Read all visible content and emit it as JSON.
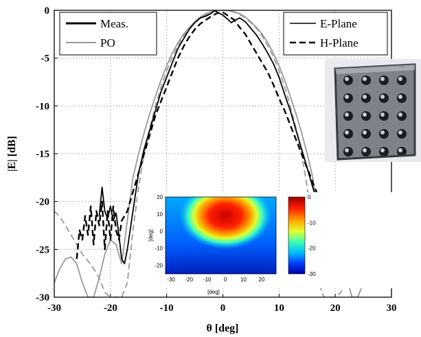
{
  "chart_data": {
    "type": "line",
    "xlabel": "θ [deg]",
    "ylabel": "|E| [dB]",
    "xlim": [
      -30,
      30
    ],
    "ylim": [
      -30,
      0
    ],
    "xticks": [
      "-30",
      "-20",
      "-10",
      "0",
      "10",
      "20",
      "30"
    ],
    "yticks": [
      "0",
      "-5",
      "-10",
      "-15",
      "-20",
      "-25",
      "-30"
    ],
    "grid": true,
    "legend_color": {
      "placement": "top-left",
      "entries": [
        {
          "label": "Meas.",
          "color": "#000000"
        },
        {
          "label": "PO",
          "color": "#999999"
        }
      ]
    },
    "legend_style": {
      "placement": "top-right",
      "entries": [
        {
          "label": "E-Plane",
          "dash": "solid"
        },
        {
          "label": "H-Plane",
          "dash": "dashed"
        }
      ]
    },
    "series": [
      {
        "source": "Meas.",
        "plane": "E-Plane",
        "color": "#000000",
        "dash": "solid",
        "x": [
          -18,
          -17.5,
          -17,
          -16,
          -15,
          -14,
          -13,
          -12,
          -11,
          -10,
          -9,
          -8,
          -7,
          -6,
          -5,
          -4,
          -3,
          -2,
          -1.5,
          -1,
          0,
          1,
          1.5,
          2,
          3,
          4,
          5,
          6,
          7,
          8,
          9,
          10,
          11,
          12,
          13,
          14,
          15,
          16,
          17,
          18
        ],
        "y": [
          -26,
          -26.5,
          -25,
          -21,
          -17,
          -14.5,
          -12.5,
          -10.5,
          -8.5,
          -7,
          -5.5,
          -4,
          -3,
          -2,
          -1.3,
          -0.8,
          -0.6,
          -0.3,
          0,
          -0.2,
          -0.5,
          -1,
          -1.3,
          -1.1,
          -0.8,
          -1.2,
          -1.9,
          -2.6,
          -3.5,
          -4.5,
          -5.6,
          -7,
          -8.8,
          -10.5,
          -12.5,
          -14.5,
          -16.5,
          -18.5,
          -20.5,
          -22
        ]
      },
      {
        "source": "Meas.",
        "plane": "H-Plane",
        "color": "#000000",
        "dash": "dashed",
        "x": [
          -26,
          -25.5,
          -25,
          -24.5,
          -24,
          -23.5,
          -23,
          -22.5,
          -22,
          -21.5,
          -21,
          -20.5,
          -20,
          -19.5,
          -19,
          -18.5,
          -18,
          -17,
          -16,
          -15,
          -14,
          -13,
          -12,
          -11,
          -10,
          -9,
          -8,
          -7,
          -6,
          -5,
          -4,
          -3,
          -2,
          -1,
          0,
          1,
          2,
          3,
          4,
          5,
          6,
          7,
          8,
          9,
          10,
          11,
          12,
          13,
          14,
          15,
          16,
          17,
          18,
          18.5
        ],
        "y": [
          -26,
          -23,
          -24,
          -21.5,
          -23.5,
          -20.5,
          -24.5,
          -21,
          -22.5,
          -20,
          -25,
          -21,
          -24,
          -20.5,
          -23,
          -24,
          -22,
          -21,
          -19,
          -17,
          -15,
          -13,
          -11,
          -9.5,
          -8,
          -6.5,
          -5,
          -3.8,
          -2.8,
          -2,
          -1.4,
          -1,
          -0.6,
          -0.3,
          -0.2,
          -0.6,
          -1,
          -1.8,
          -2.5,
          -3.5,
          -4.5,
          -5.5,
          -6.5,
          -7.8,
          -9.2,
          -10.5,
          -12,
          -13.5,
          -15,
          -16.5,
          -18,
          -19.5,
          -21,
          -22
        ]
      },
      {
        "source": "Meas.",
        "plane": "E-Plane",
        "color": "#000000",
        "dash": "solid",
        "x": [
          18,
          18.5,
          19,
          19.5,
          20,
          20.5,
          21,
          21.5,
          22,
          22.5,
          23,
          23.5,
          24,
          24.5,
          25,
          25.5,
          26,
          26.5,
          27,
          27.5,
          28,
          28.5,
          29,
          29.5,
          30
        ],
        "y": [
          -22,
          -23,
          -22.5,
          -23.5,
          -23,
          -24,
          -24.2,
          -23.6,
          -24.4,
          -23.8,
          -23,
          -24.5,
          -23.5,
          -22.6,
          -24.6,
          -23.4,
          -22.5,
          -23.5,
          -23,
          -24.2,
          -23,
          -22.2,
          -24,
          -23.6,
          -24.2
        ]
      },
      {
        "source": "Meas.",
        "plane": "E-Plane",
        "color": "#000000",
        "dash": "solid",
        "x": [
          -22,
          -21.5,
          -21,
          -20.5,
          -20,
          -19.5,
          -19,
          -18.5,
          -18
        ],
        "y": [
          -21.5,
          -18.5,
          -21,
          -21.8,
          -20.5,
          -22,
          -21.2,
          -23.5,
          -26
        ]
      },
      {
        "source": "PO",
        "plane": "E-Plane",
        "color": "#999999",
        "dash": "solid",
        "x": [
          -30,
          -29,
          -28,
          -27,
          -26,
          -25,
          -24,
          -23,
          -22,
          -21,
          -20,
          -19,
          -18,
          -17,
          -16,
          -15,
          -14,
          -13,
          -12,
          -11,
          -10,
          -9,
          -8,
          -7,
          -6,
          -5,
          -4,
          -3,
          -2,
          -1,
          0,
          1,
          2,
          3,
          4,
          5,
          6,
          7,
          8,
          9,
          10,
          11,
          12,
          13,
          14,
          15,
          16,
          17,
          18,
          19,
          20,
          21,
          22,
          23,
          24,
          25,
          26,
          27,
          28,
          29,
          30
        ],
        "y": [
          -28.5,
          -27,
          -26,
          -25.8,
          -26.5,
          -28.5,
          -30,
          -30,
          -28,
          -25.5,
          -24,
          -24.5,
          -26.5,
          -22,
          -17.5,
          -15,
          -12.8,
          -10.8,
          -9,
          -7.3,
          -5.8,
          -4.5,
          -3.4,
          -2.5,
          -1.8,
          -1.2,
          -0.7,
          -0.35,
          -0.15,
          -0.03,
          0,
          -0.03,
          -0.15,
          -0.35,
          -0.7,
          -1.2,
          -1.8,
          -2.5,
          -3.4,
          -4.5,
          -5.8,
          -7.3,
          -9,
          -10.8,
          -12.8,
          -15,
          -17.5,
          -22,
          -26.5,
          -24.5,
          -24,
          -25.5,
          -28,
          -30,
          -30,
          -28.5,
          -26.5,
          -25.8,
          -26,
          -27,
          -28.5
        ]
      },
      {
        "source": "PO",
        "plane": "H-Plane",
        "color": "#999999",
        "dash": "dashed",
        "x": [
          -30,
          -29,
          -28,
          -27,
          -26,
          -25,
          -24,
          -23,
          -22,
          -21,
          -20,
          -19,
          -18,
          -17,
          -16,
          -15,
          -14,
          -13,
          -12,
          -11,
          -10,
          -9,
          -8,
          -7,
          -6,
          -5,
          -4,
          -3,
          -2,
          -1,
          0,
          1,
          2,
          3,
          4,
          5,
          6,
          7,
          8,
          9,
          10,
          11,
          12,
          13,
          14,
          15,
          16,
          17,
          18,
          19,
          20,
          21,
          22,
          23,
          24,
          25,
          26,
          27,
          28,
          29,
          30
        ],
        "y": [
          -21,
          -21.6,
          -22.5,
          -23.5,
          -24.5,
          -25.5,
          -26.2,
          -27,
          -28,
          -29.5,
          -30,
          -30,
          -30,
          -28.5,
          -23,
          -18.5,
          -15,
          -12.3,
          -10,
          -8,
          -6.3,
          -4.9,
          -3.7,
          -2.7,
          -1.9,
          -1.3,
          -0.8,
          -0.45,
          -0.2,
          -0.05,
          0,
          -0.05,
          -0.2,
          -0.45,
          -0.8,
          -1.3,
          -1.9,
          -2.7,
          -3.7,
          -4.9,
          -6.3,
          -8,
          -10,
          -12.3,
          -15,
          -18.5,
          -23,
          -28.5,
          -30,
          -30,
          -30,
          -29.5,
          -28,
          -27,
          -26.2,
          -25.5,
          -24.5,
          -23.5,
          -22.5,
          -21.6,
          -21
        ]
      }
    ],
    "inset_heatmap": {
      "type": "heatmap",
      "xlabel": "[deg]",
      "ylabel": "[deg]",
      "xticks": [
        "-30",
        "-20",
        "-10",
        "0",
        "10",
        "20"
      ],
      "yticks": [
        "20",
        "10",
        "0",
        "-10",
        "-20",
        "-30"
      ],
      "colorbar_ticks": [
        "0",
        "-10",
        "-20",
        "-30"
      ],
      "colormap": [
        "#0000a0",
        "#0040ff",
        "#00c0ff",
        "#40ffb0",
        "#c0ff40",
        "#ffd000",
        "#ff6000",
        "#d00000"
      ]
    }
  },
  "colors": {
    "background": "#ffffff",
    "grid": "#9a9a9a",
    "axis": "#000000"
  }
}
